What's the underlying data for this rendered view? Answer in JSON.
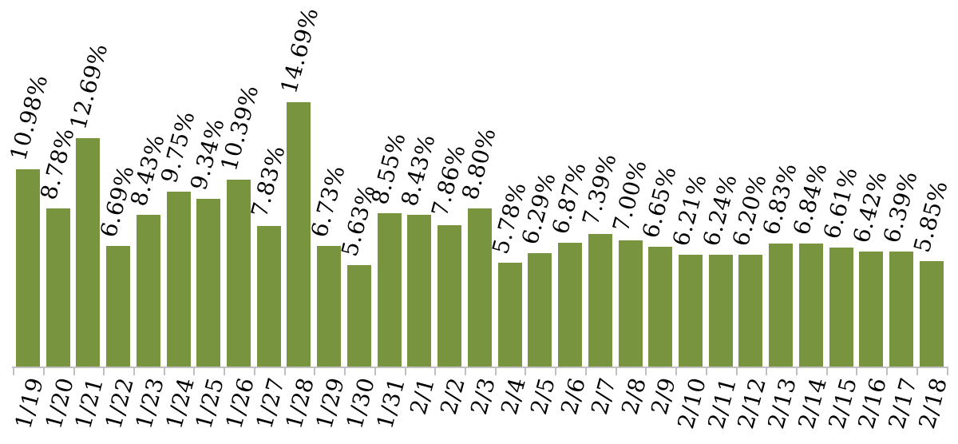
{
  "chart_data": {
    "type": "bar",
    "title": "",
    "xlabel": "",
    "ylabel": "",
    "grid": false,
    "legend": false,
    "value_label_format": "percent_two_decimals",
    "label_rotation_deg": -75,
    "bar_color": "#78943E",
    "axis_color": "#C0C0C0",
    "text_color": "#000000",
    "ylim": [
      0,
      15.5
    ],
    "categories": [
      "1/19",
      "1/20",
      "1/21",
      "1/22",
      "1/23",
      "1/24",
      "1/25",
      "1/26",
      "1/27",
      "1/28",
      "1/29",
      "1/30",
      "1/31",
      "2/1",
      "2/2",
      "2/3",
      "2/4",
      "2/5",
      "2/6",
      "2/7",
      "2/8",
      "2/9",
      "2/10",
      "2/11",
      "2/12",
      "2/13",
      "2/14",
      "2/15",
      "2/16",
      "2/17",
      "2/18"
    ],
    "values": [
      10.98,
      8.78,
      12.69,
      6.69,
      8.43,
      9.75,
      9.34,
      10.39,
      7.83,
      14.69,
      6.73,
      5.63,
      8.55,
      8.43,
      7.86,
      8.8,
      5.78,
      6.29,
      6.87,
      7.39,
      7.0,
      6.65,
      6.21,
      6.24,
      6.2,
      6.83,
      6.84,
      6.61,
      6.42,
      6.39,
      5.85
    ],
    "value_labels": [
      "10.98%",
      "8.78%",
      "12.69%",
      "6.69%",
      "8.43%",
      "9.75%",
      "9.34%",
      "10.39%",
      "7.83%",
      "14.69%",
      "6.73%",
      "5.63%",
      "8.55%",
      "8.43%",
      "7.86%",
      "8.80%",
      "5.78%",
      "6.29%",
      "6.87%",
      "7.39%",
      "7.00%",
      "6.65%",
      "6.21%",
      "6.24%",
      "6.20%",
      "6.83%",
      "6.84%",
      "6.61%",
      "6.42%",
      "6.39%",
      "5.85%"
    ]
  }
}
